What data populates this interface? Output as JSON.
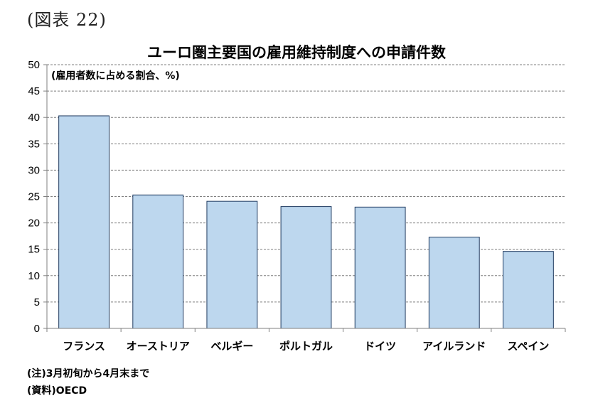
{
  "figure_label": "(図表 22)",
  "notes": {
    "note": "(注)3月初旬から4月末まで",
    "source": "(資料)OECD"
  },
  "chart_data": {
    "type": "bar",
    "title": "ユーロ圏主要国の雇用維持制度への申請件数",
    "unit_label": "(雇用者数に占める割合、%)",
    "xlabel": "",
    "ylabel": "",
    "categories": [
      "フランス",
      "オーストリア",
      "ベルギー",
      "ポルトガル",
      "ドイツ",
      "アイルランド",
      "スペイン"
    ],
    "values": [
      40.3,
      25.3,
      24.1,
      23.1,
      23.0,
      17.3,
      14.6
    ],
    "ylim": [
      0,
      50
    ],
    "yticks": [
      0,
      5,
      10,
      15,
      20,
      25,
      30,
      35,
      40,
      45,
      50
    ],
    "grid": "horizontal-dashed",
    "bar_color": "#bdd7ee",
    "bar_edge_color": "#1f3a5f",
    "legend": "none"
  }
}
